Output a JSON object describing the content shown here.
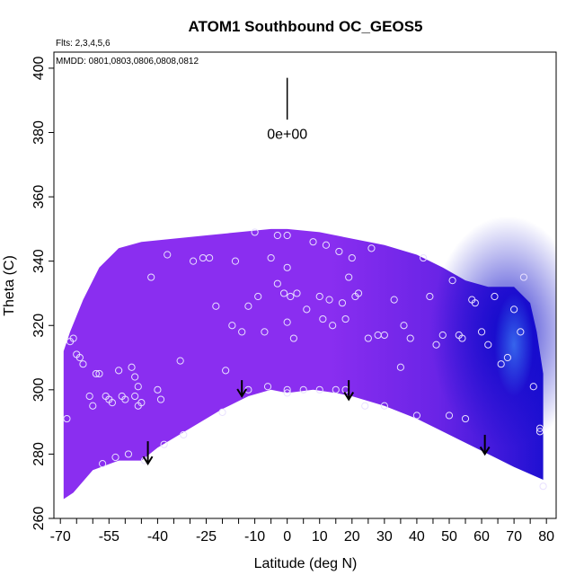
{
  "chart_data": {
    "type": "heatmap",
    "title": "ATOM1 Southbound OC_GEOS5",
    "flights_note": "Flts: 2,3,4,5,6",
    "dates_note": "MMDD: 0801,0803,0806,0808,0812",
    "xlabel": "Latitude (deg N)",
    "ylabel": "Theta (C)",
    "xlim": [
      -72,
      83
    ],
    "ylim": [
      260,
      405
    ],
    "x_ticks": [
      -70,
      -55,
      -40,
      -25,
      -10,
      0,
      10,
      20,
      30,
      40,
      50,
      60,
      70,
      80
    ],
    "x_minor_ticks": [
      -65,
      -60,
      -50,
      -45,
      -35,
      -30,
      -20,
      -15,
      -5,
      5,
      15,
      25,
      35,
      45,
      55,
      65,
      75
    ],
    "y_ticks": [
      260,
      280,
      300,
      320,
      340,
      360,
      380,
      400
    ],
    "scale_label": "0e+00",
    "colors": {
      "field_base": "#8a2ef0",
      "field_mid": "#6a24e6",
      "field_deep": "#1f10d2",
      "field_core": "#0a08c8",
      "field_light": "#3a6ef0",
      "marker": "#e8e0ff",
      "arrow": "#000000"
    },
    "upper_boundary": [
      [
        -69,
        312
      ],
      [
        -67,
        318
      ],
      [
        -63,
        328
      ],
      [
        -58,
        338
      ],
      [
        -52,
        344
      ],
      [
        -45,
        346
      ],
      [
        -35,
        347
      ],
      [
        -25,
        348
      ],
      [
        -15,
        349
      ],
      [
        -5,
        350
      ],
      [
        0,
        350
      ],
      [
        10,
        349
      ],
      [
        20,
        347
      ],
      [
        30,
        345
      ],
      [
        40,
        342
      ],
      [
        48,
        338
      ],
      [
        55,
        334
      ],
      [
        62,
        332
      ],
      [
        70,
        332
      ],
      [
        75,
        327
      ],
      [
        77,
        318
      ],
      [
        79,
        305
      ]
    ],
    "lower_boundary": [
      [
        -69,
        266
      ],
      [
        -66,
        268
      ],
      [
        -60,
        275
      ],
      [
        -52,
        278
      ],
      [
        -45,
        278
      ],
      [
        -40,
        282
      ],
      [
        -30,
        288
      ],
      [
        -20,
        294
      ],
      [
        -12,
        298
      ],
      [
        -5,
        300
      ],
      [
        0,
        299
      ],
      [
        8,
        300
      ],
      [
        15,
        299
      ],
      [
        20,
        298
      ],
      [
        30,
        295
      ],
      [
        40,
        291
      ],
      [
        50,
        286
      ],
      [
        60,
        281
      ],
      [
        70,
        276
      ],
      [
        79,
        272
      ]
    ],
    "descent_arrows": [
      {
        "lat": -43,
        "from": 284,
        "to": 277
      },
      {
        "lat": -14,
        "from": 303,
        "to": 298
      },
      {
        "lat": 19,
        "from": 303,
        "to": 297
      },
      {
        "lat": 61,
        "from": 286,
        "to": 280
      }
    ],
    "observation_points": [
      [
        -68,
        291
      ],
      [
        -67,
        315
      ],
      [
        -66,
        316
      ],
      [
        -65,
        311
      ],
      [
        -64,
        310
      ],
      [
        -63,
        308
      ],
      [
        -61,
        298
      ],
      [
        -60,
        295
      ],
      [
        -59,
        305
      ],
      [
        -58,
        305
      ],
      [
        -57,
        277
      ],
      [
        -56,
        298
      ],
      [
        -55,
        297
      ],
      [
        -54,
        296
      ],
      [
        -53,
        279
      ],
      [
        -52,
        306
      ],
      [
        -51,
        298
      ],
      [
        -50,
        297
      ],
      [
        -49,
        280
      ],
      [
        -48,
        307
      ],
      [
        -47,
        304
      ],
      [
        -47,
        298
      ],
      [
        -46,
        301
      ],
      [
        -46,
        295
      ],
      [
        -45,
        296
      ],
      [
        -44,
        278
      ],
      [
        -42,
        335
      ],
      [
        -40,
        300
      ],
      [
        -39,
        297
      ],
      [
        -38,
        283
      ],
      [
        -37,
        342
      ],
      [
        -33,
        309
      ],
      [
        -32,
        286
      ],
      [
        -29,
        340
      ],
      [
        -26,
        341
      ],
      [
        -24,
        341
      ],
      [
        -22,
        326
      ],
      [
        -20,
        293
      ],
      [
        -19,
        306
      ],
      [
        -17,
        320
      ],
      [
        -16,
        340
      ],
      [
        -14,
        318
      ],
      [
        -12,
        300
      ],
      [
        -12,
        326
      ],
      [
        -10,
        349
      ],
      [
        -9,
        329
      ],
      [
        -7,
        318
      ],
      [
        -6,
        301
      ],
      [
        -5,
        341
      ],
      [
        -3,
        348
      ],
      [
        -3,
        333
      ],
      [
        -1,
        330
      ],
      [
        0,
        300
      ],
      [
        0,
        299
      ],
      [
        0,
        321
      ],
      [
        0,
        338
      ],
      [
        0,
        348
      ],
      [
        1,
        329
      ],
      [
        2,
        316
      ],
      [
        3,
        330
      ],
      [
        5,
        300
      ],
      [
        6,
        325
      ],
      [
        8,
        346
      ],
      [
        10,
        300
      ],
      [
        10,
        329
      ],
      [
        11,
        322
      ],
      [
        12,
        345
      ],
      [
        13,
        328
      ],
      [
        14,
        320
      ],
      [
        15,
        300
      ],
      [
        16,
        343
      ],
      [
        17,
        327
      ],
      [
        18,
        300
      ],
      [
        18,
        322
      ],
      [
        19,
        335
      ],
      [
        20,
        341
      ],
      [
        21,
        329
      ],
      [
        22,
        330
      ],
      [
        24,
        295
      ],
      [
        25,
        316
      ],
      [
        26,
        344
      ],
      [
        28,
        317
      ],
      [
        30,
        295
      ],
      [
        30,
        317
      ],
      [
        33,
        328
      ],
      [
        35,
        307
      ],
      [
        36,
        320
      ],
      [
        38,
        316
      ],
      [
        40,
        292
      ],
      [
        42,
        341
      ],
      [
        44,
        329
      ],
      [
        46,
        314
      ],
      [
        48,
        317
      ],
      [
        50,
        292
      ],
      [
        51,
        334
      ],
      [
        53,
        317
      ],
      [
        54,
        316
      ],
      [
        55,
        291
      ],
      [
        57,
        328
      ],
      [
        58,
        327
      ],
      [
        60,
        318
      ],
      [
        62,
        314
      ],
      [
        64,
        329
      ],
      [
        66,
        308
      ],
      [
        68,
        310
      ],
      [
        70,
        325
      ],
      [
        72,
        318
      ],
      [
        73,
        335
      ],
      [
        76,
        301
      ],
      [
        78,
        288
      ],
      [
        78,
        287
      ],
      [
        79,
        270
      ]
    ]
  }
}
